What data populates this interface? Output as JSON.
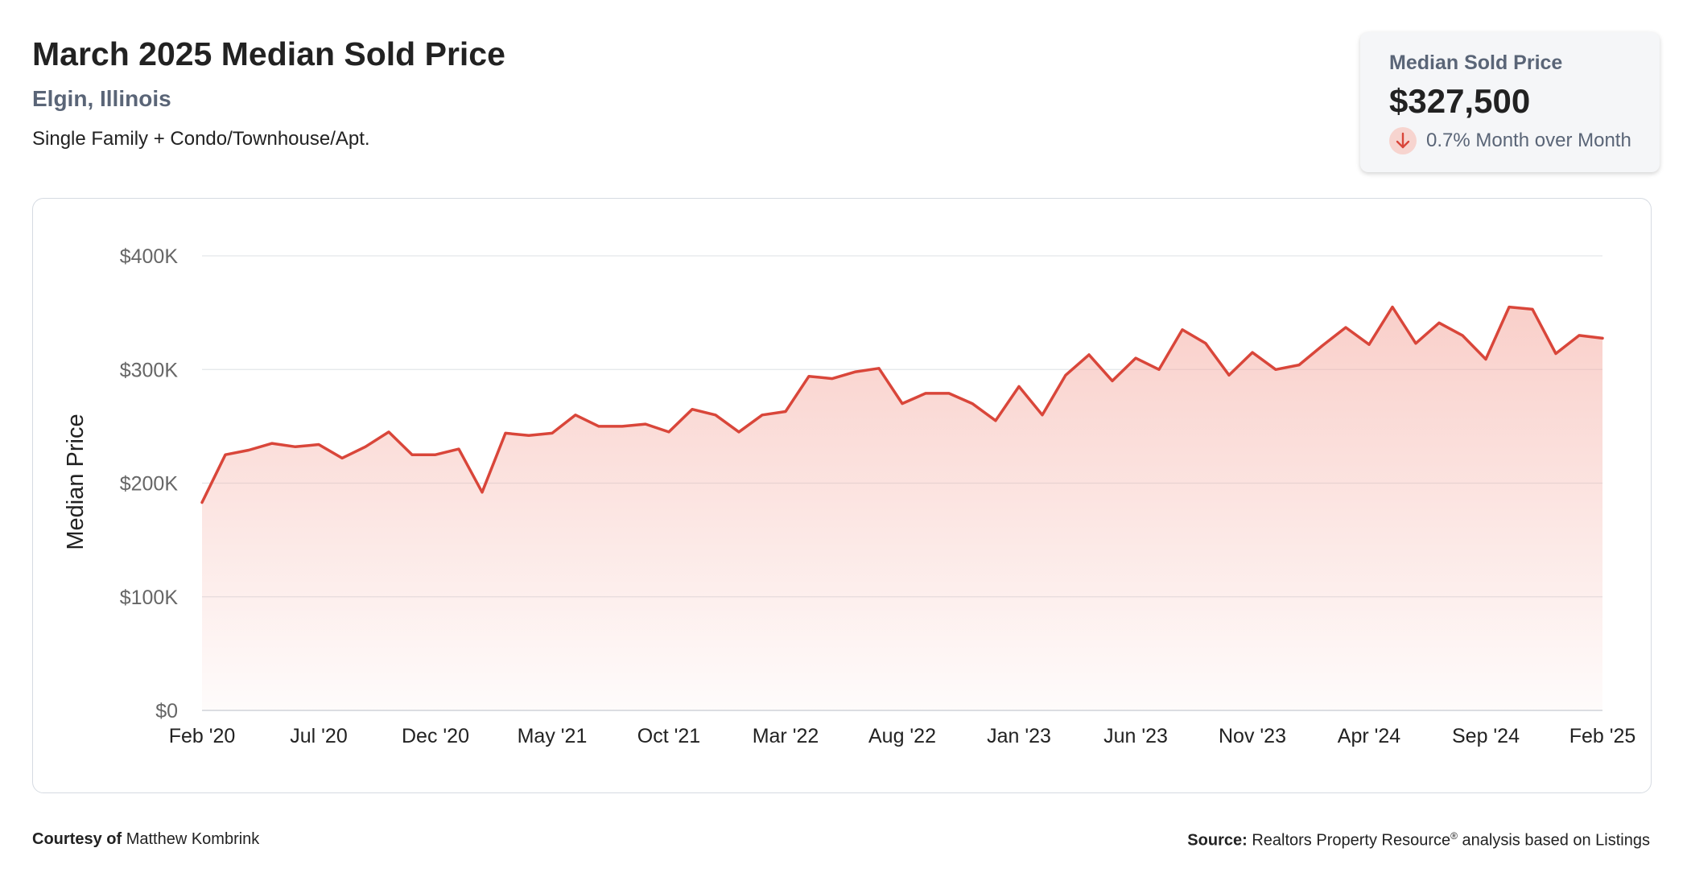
{
  "header": {
    "title": "March 2025 Median Sold Price",
    "location": "Elgin, Illinois",
    "property_types": "Single Family + Condo/Townhouse/Apt."
  },
  "stat_card": {
    "label": "Median Sold Price",
    "value": "$327,500",
    "change": "0.7% Month over Month",
    "direction_icon": "arrow-down-icon",
    "change_color": "#d9463a"
  },
  "footer": {
    "courtesy_label": "Courtesy of",
    "courtesy_name": "Matthew Kombrink",
    "source_label": "Source:",
    "source_text": "Realtors Property Resource",
    "source_mark": "®",
    "source_suffix": "analysis based on Listings"
  },
  "chart_data": {
    "type": "area",
    "title": "",
    "xlabel": "",
    "ylabel": "Median Price",
    "ylim": [
      0,
      400000
    ],
    "yticks": [
      0,
      100000,
      200000,
      300000,
      400000
    ],
    "ytick_labels": [
      "$0",
      "$100K",
      "$200K",
      "$300K",
      "$400K"
    ],
    "xtick_labels": [
      "Feb '20",
      "Jul '20",
      "Dec '20",
      "May '21",
      "Oct '21",
      "Mar '22",
      "Aug '22",
      "Jan '23",
      "Jun '23",
      "Nov '23",
      "Apr '24",
      "Sep '24",
      "Feb '25"
    ],
    "grid": true,
    "line_color": "#d9463a",
    "fill_color": "#f4a89e",
    "categories": [
      "Feb '20",
      "Mar '20",
      "Apr '20",
      "May '20",
      "Jun '20",
      "Jul '20",
      "Aug '20",
      "Sep '20",
      "Oct '20",
      "Nov '20",
      "Dec '20",
      "Jan '21",
      "Feb '21",
      "Mar '21",
      "Apr '21",
      "May '21",
      "Jun '21",
      "Jul '21",
      "Aug '21",
      "Sep '21",
      "Oct '21",
      "Nov '21",
      "Dec '21",
      "Jan '22",
      "Feb '22",
      "Mar '22",
      "Apr '22",
      "May '22",
      "Jun '22",
      "Jul '22",
      "Aug '22",
      "Sep '22",
      "Oct '22",
      "Nov '22",
      "Dec '22",
      "Jan '23",
      "Feb '23",
      "Mar '23",
      "Apr '23",
      "May '23",
      "Jun '23",
      "Jul '23",
      "Aug '23",
      "Sep '23",
      "Oct '23",
      "Nov '23",
      "Dec '23",
      "Jan '24",
      "Feb '24",
      "Mar '24",
      "Apr '24",
      "May '24",
      "Jun '24",
      "Jul '24",
      "Aug '24",
      "Sep '24",
      "Oct '24",
      "Nov '24",
      "Dec '24",
      "Jan '25",
      "Feb '25"
    ],
    "values": [
      183000,
      225000,
      229000,
      235000,
      232000,
      234000,
      222000,
      232000,
      245000,
      225000,
      225000,
      230000,
      192000,
      244000,
      242000,
      244000,
      260000,
      250000,
      250000,
      252000,
      245000,
      265000,
      260000,
      245000,
      260000,
      263000,
      294000,
      292000,
      298000,
      301000,
      270000,
      279000,
      279000,
      270000,
      255000,
      285000,
      260000,
      295000,
      313000,
      290000,
      310000,
      300000,
      335000,
      323000,
      295000,
      315000,
      300000,
      304000,
      321000,
      337000,
      322000,
      355000,
      323000,
      341000,
      330000,
      309000,
      355000,
      353000,
      314000,
      330000,
      327500
    ]
  }
}
